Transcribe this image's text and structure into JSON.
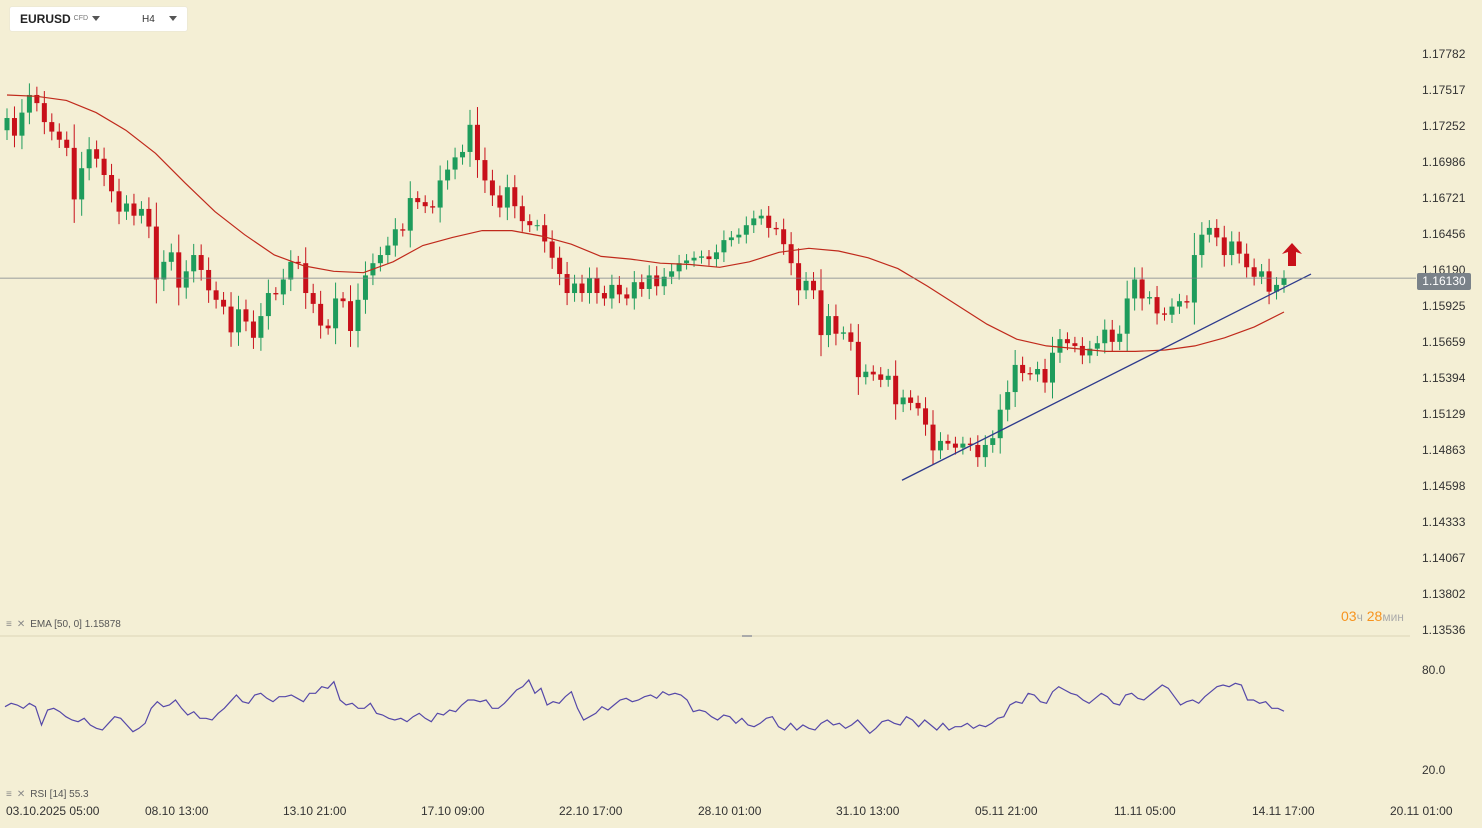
{
  "toolbar": {
    "symbol": "EURUSD",
    "symbol_type": "CFD",
    "timeframe": "H4"
  },
  "legends": {
    "ema": {
      "text": "EMA [50, 0] 1.15878"
    },
    "rsi": {
      "text": "RSI [14] 55.3"
    }
  },
  "timer": {
    "hours": "03",
    "hours_unit": "ч",
    "minutes": "28",
    "minutes_unit": "мин"
  },
  "current_price": "1.16130",
  "colors": {
    "background": "#f4efd5",
    "bull": "#1e9c5c",
    "bear": "#c8101a",
    "ema": "#c02a1c",
    "trendline": "#2d3a8c",
    "rsi": "#5548a8",
    "arrow": "#c8101a"
  },
  "chart_data": [
    {
      "type": "candlestick",
      "title": "",
      "y_ticks": [
        "1.17782",
        "1.17517",
        "1.17252",
        "1.16986",
        "1.16721",
        "1.16456",
        "1.16190",
        "1.15925",
        "1.15659",
        "1.15394",
        "1.15129",
        "1.14863",
        "1.14598",
        "1.14333",
        "1.14067",
        "1.13802",
        "1.13536"
      ],
      "ylim": [
        1.13536,
        1.17782
      ],
      "x_ticks": [
        "03.10.2025  05:00",
        "08.10  13:00",
        "13.10  21:00",
        "17.10  09:00",
        "22.10  17:00",
        "28.10  01:00",
        "31.10  13:00",
        "05.11  21:00",
        "11.11  05:00",
        "14.11  17:00",
        "20.11  01:00"
      ],
      "last_price": 1.1613,
      "ema_period": 50,
      "ema_value": 1.15878,
      "ema_series": [
        1.1748,
        1.1747,
        1.1744,
        1.1735,
        1.1722,
        1.1705,
        1.1683,
        1.1662,
        1.1645,
        1.163,
        1.1622,
        1.1618,
        1.1617,
        1.1625,
        1.1637,
        1.1643,
        1.1648,
        1.1648,
        1.1644,
        1.1638,
        1.1629,
        1.1627,
        1.1624,
        1.1623,
        1.1621,
        1.1625,
        1.1632,
        1.1635,
        1.1633,
        1.1628,
        1.162,
        1.1607,
        1.1593,
        1.1579,
        1.1568,
        1.1563,
        1.1561,
        1.1559,
        1.1559,
        1.156,
        1.1563,
        1.1569,
        1.1577,
        1.1588
      ],
      "trendline": [
        [
          1.1464
        ],
        [
          1.1616
        ]
      ],
      "series": [
        {
          "name": "",
          "values": [
            1.1731,
            1.1718,
            1.1735,
            1.1748,
            1.1742,
            1.1728,
            1.1721,
            1.1715,
            1.1709,
            1.1671,
            1.1694,
            1.1708,
            1.1701,
            1.1689,
            1.1677,
            1.1662,
            1.1668,
            1.1659,
            1.1664,
            1.1651,
            1.1612,
            1.1625,
            1.1632,
            1.1606,
            1.1618,
            1.163,
            1.1619,
            1.1604,
            1.1597,
            1.1592,
            1.1573,
            1.159,
            1.1581,
            1.1569,
            1.1585,
            1.1602,
            1.1601,
            1.1612,
            1.1625,
            1.1624,
            1.1602,
            1.1594,
            1.1578,
            1.1576,
            1.1598,
            1.1596,
            1.1574,
            1.1597,
            1.1615,
            1.1624,
            1.163,
            1.1637,
            1.1649,
            1.1648,
            1.1672,
            1.1669,
            1.1666,
            1.1665,
            1.1685,
            1.1693,
            1.1702,
            1.1706,
            1.1726,
            1.17,
            1.1685,
            1.1674,
            1.1665,
            1.168,
            1.1666,
            1.1655,
            1.1652,
            1.1652,
            1.164,
            1.1628,
            1.1616,
            1.1602,
            1.1609,
            1.1602,
            1.1613,
            1.1602,
            1.1598,
            1.1608,
            1.1601,
            1.1598,
            1.161,
            1.1605,
            1.1615,
            1.1607,
            1.1614,
            1.1618,
            1.1624,
            1.1626,
            1.1628,
            1.1629,
            1.1627,
            1.1632,
            1.1641,
            1.1643,
            1.1645,
            1.1652,
            1.1657,
            1.1659,
            1.165,
            1.1649,
            1.1638,
            1.1624,
            1.1604,
            1.1611,
            1.1604,
            1.1571,
            1.1585,
            1.1572,
            1.1573,
            1.1566,
            1.154,
            1.1544,
            1.1542,
            1.1538,
            1.1541,
            1.152,
            1.1525,
            1.1521,
            1.1517,
            1.1505,
            1.1486,
            1.1493,
            1.1491,
            1.1488,
            1.1491,
            1.149,
            1.1481,
            1.149,
            1.1495,
            1.1516,
            1.1529,
            1.1549,
            1.1543,
            1.1542,
            1.1546,
            1.1536,
            1.1558,
            1.1568,
            1.1565,
            1.1563,
            1.1556,
            1.1561,
            1.1565,
            1.1575,
            1.1566,
            1.1572,
            1.1598,
            1.1612,
            1.1598,
            1.1599,
            1.1587,
            1.1586,
            1.1592,
            1.1596,
            1.1595,
            1.163,
            1.1645,
            1.165,
            1.1643,
            1.163,
            1.164,
            1.1631,
            1.1621,
            1.1614,
            1.1618,
            1.1603,
            1.1608,
            1.1613
          ]
        }
      ]
    },
    {
      "type": "line",
      "title": "",
      "indicator": "RSI",
      "period": 14,
      "last_value": 55.3,
      "y_ticks": [
        "80.0",
        "20.0"
      ],
      "ylim": [
        15,
        85
      ],
      "series": [
        {
          "name": "",
          "values": [
            58,
            60,
            59,
            57,
            60,
            58,
            47,
            56,
            57,
            55,
            52,
            50,
            49,
            51,
            47,
            45,
            44,
            48,
            52,
            51,
            47,
            43,
            45,
            48,
            57,
            61,
            58,
            59,
            62,
            57,
            53,
            55,
            51,
            51,
            50,
            54,
            57,
            61,
            65,
            61,
            60,
            65,
            66,
            63,
            61,
            64,
            64,
            65,
            63,
            61,
            66,
            66,
            70,
            69,
            73,
            62,
            59,
            60,
            57,
            57,
            60,
            54,
            53,
            51,
            50,
            51,
            49,
            52,
            54,
            51,
            49,
            54,
            53,
            56,
            55,
            59,
            62,
            62,
            61,
            62,
            57,
            57,
            60,
            64,
            68,
            70,
            74,
            66,
            69,
            59,
            61,
            60,
            64,
            67,
            57,
            50,
            52,
            54,
            58,
            56,
            59,
            62,
            63,
            61,
            62,
            64,
            65,
            63,
            67,
            65,
            66,
            65,
            62,
            55,
            56,
            55,
            52,
            50,
            53,
            52,
            48,
            51,
            47,
            46,
            48,
            51,
            52,
            46,
            44,
            48,
            44,
            47,
            45,
            44,
            48,
            50,
            47,
            48,
            45,
            47,
            50,
            46,
            42,
            45,
            49,
            50,
            48,
            47,
            52,
            50,
            46,
            50,
            47,
            44,
            48,
            44,
            46,
            46,
            48,
            45,
            47,
            46,
            48,
            51,
            52,
            59,
            61,
            60,
            66,
            65,
            61,
            60,
            67,
            70,
            68,
            66,
            65,
            62,
            60,
            63,
            66,
            64,
            60,
            59,
            65,
            66,
            63,
            62,
            65,
            68,
            71,
            69,
            64,
            59,
            61,
            62,
            60,
            64,
            67,
            70,
            71,
            70,
            72,
            71,
            62,
            62,
            60,
            61,
            57,
            57,
            55.3
          ]
        }
      ]
    }
  ]
}
